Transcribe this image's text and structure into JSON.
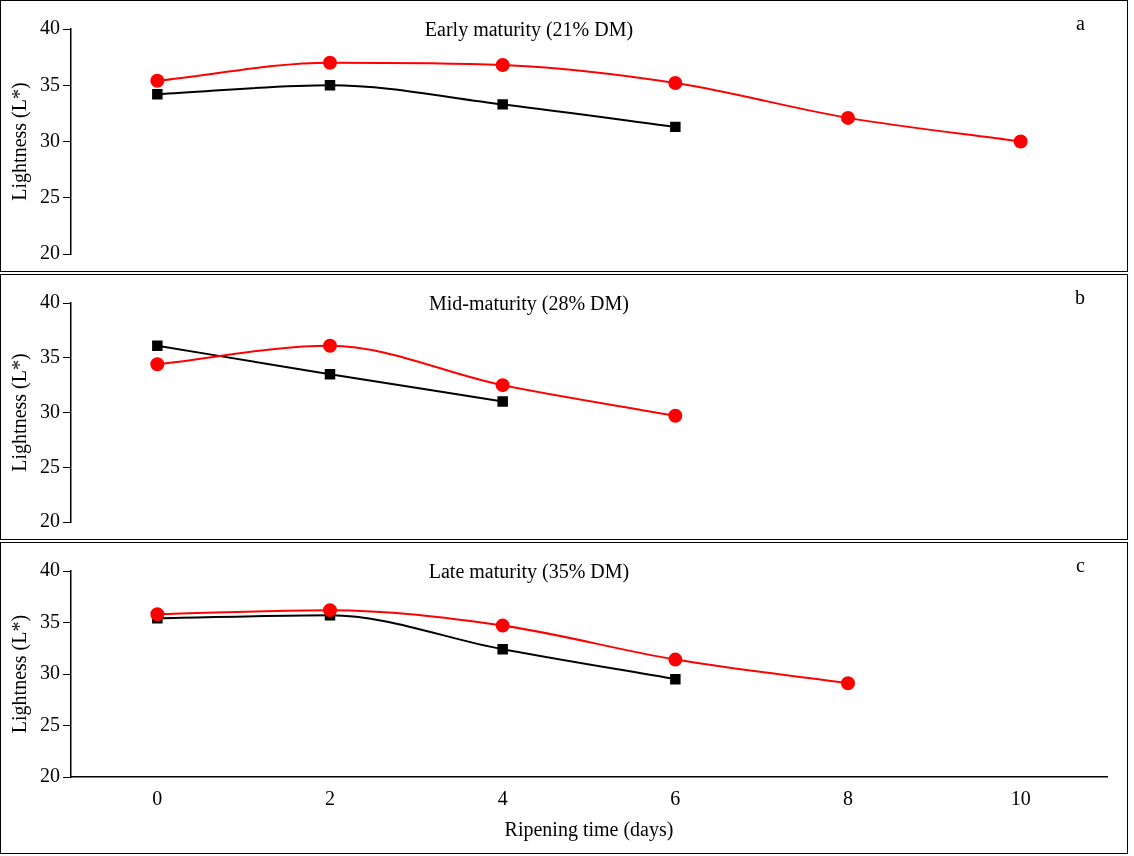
{
  "chart_data": [
    {
      "type": "line",
      "title": "Early maturity (21% DM)",
      "ylabel": "Lightness (L*)",
      "annotations": [
        "a"
      ],
      "x": [
        0,
        2,
        4,
        6,
        8,
        10
      ],
      "xticks": [
        0,
        2,
        4,
        6,
        8,
        10
      ],
      "ylim": [
        20,
        40
      ],
      "yticks": [
        20,
        25,
        30,
        35,
        40
      ],
      "tick_labels": "y",
      "grid": false,
      "legend": false,
      "series": [
        {
          "color": "#000000",
          "marker": "square",
          "x": [
            0,
            2,
            4,
            6
          ],
          "values": [
            34.2,
            35.0,
            33.3,
            31.3
          ]
        },
        {
          "color": "#ff0000",
          "marker": "circle",
          "values": [
            35.4,
            37.0,
            36.8,
            35.2,
            32.1,
            30.0
          ]
        }
      ]
    },
    {
      "type": "line",
      "title": "Mid-maturity (28% DM)",
      "ylabel": "Lightness (L*)",
      "annotations": [
        "b"
      ],
      "x": [
        0,
        2,
        4,
        6
      ],
      "xticks": [
        0,
        2,
        4,
        6,
        8,
        10
      ],
      "ylim": [
        20,
        40
      ],
      "yticks": [
        20,
        25,
        30,
        35,
        40
      ],
      "tick_labels": "y",
      "grid": false,
      "legend": false,
      "series": [
        {
          "color": "#000000",
          "marker": "square",
          "x": [
            0,
            2,
            4
          ],
          "values": [
            36.1,
            33.5,
            31.0
          ]
        },
        {
          "color": "#ff0000",
          "marker": "circle",
          "values": [
            34.4,
            36.1,
            32.5,
            29.7
          ]
        }
      ]
    },
    {
      "type": "line",
      "title": "Late maturity (35% DM)",
      "xlabel": "Ripening time (days)",
      "ylabel": "Lightness (L*)",
      "annotations": [
        "c"
      ],
      "x": [
        0,
        2,
        4,
        6,
        8
      ],
      "xlim": [
        -1,
        11
      ],
      "xticks": [
        0,
        2,
        4,
        6,
        8,
        10
      ],
      "ylim": [
        20,
        40
      ],
      "yticks": [
        20,
        25,
        30,
        35,
        40
      ],
      "grid": false,
      "legend": false,
      "series": [
        {
          "color": "#000000",
          "marker": "square",
          "x": [
            0,
            2,
            4,
            6
          ],
          "values": [
            35.4,
            35.7,
            32.4,
            29.5
          ]
        },
        {
          "color": "#ff0000",
          "marker": "circle",
          "values": [
            35.8,
            36.2,
            34.7,
            31.4,
            29.1
          ]
        }
      ]
    }
  ]
}
